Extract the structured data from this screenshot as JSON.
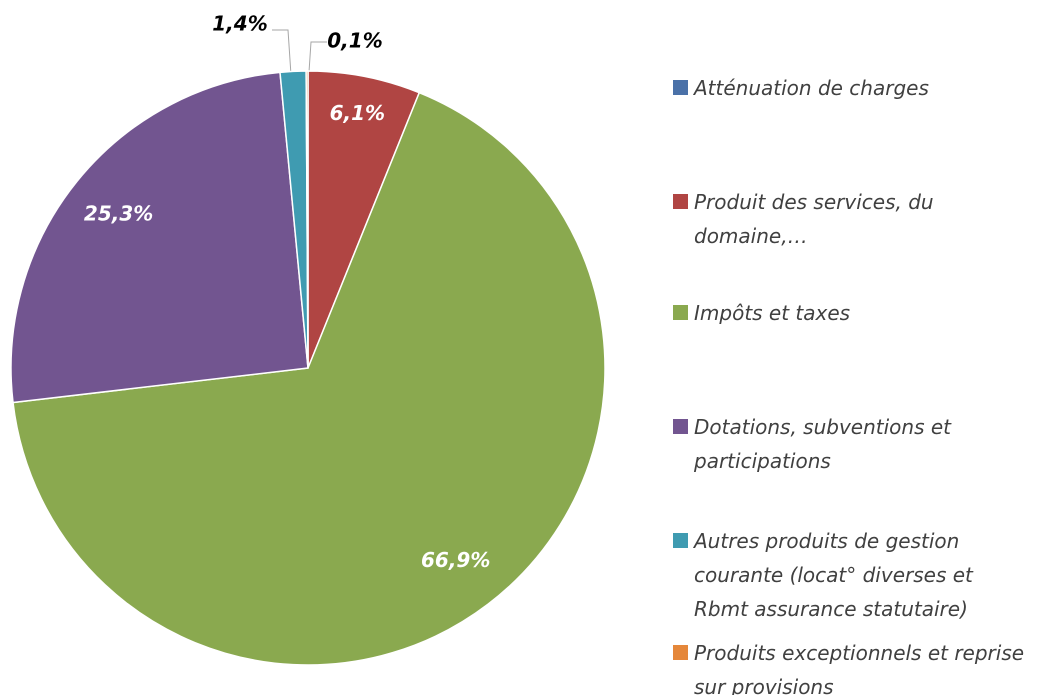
{
  "chart_data": {
    "type": "pie",
    "categories": [
      "Atténuation de charges",
      "Produit des services, du domaine,…",
      "Impôts et taxes",
      "Dotations, subventions et participations",
      "Autres produits de gestion courante (locat° diverses et Rbmt assurance statutaire)",
      "Produits exceptionnels et reprise sur provisions"
    ],
    "values": [
      0,
      6.1,
      66.9,
      25.3,
      1.4,
      0.1
    ],
    "value_labels": [
      null,
      "6,1%",
      "66,9%",
      "25,3%",
      "1,4%",
      "0,1%"
    ],
    "colors": [
      "#4a71a8",
      "#b04543",
      "#8aa94f",
      "#725590",
      "#3f9bb1",
      "#e5873a"
    ]
  }
}
